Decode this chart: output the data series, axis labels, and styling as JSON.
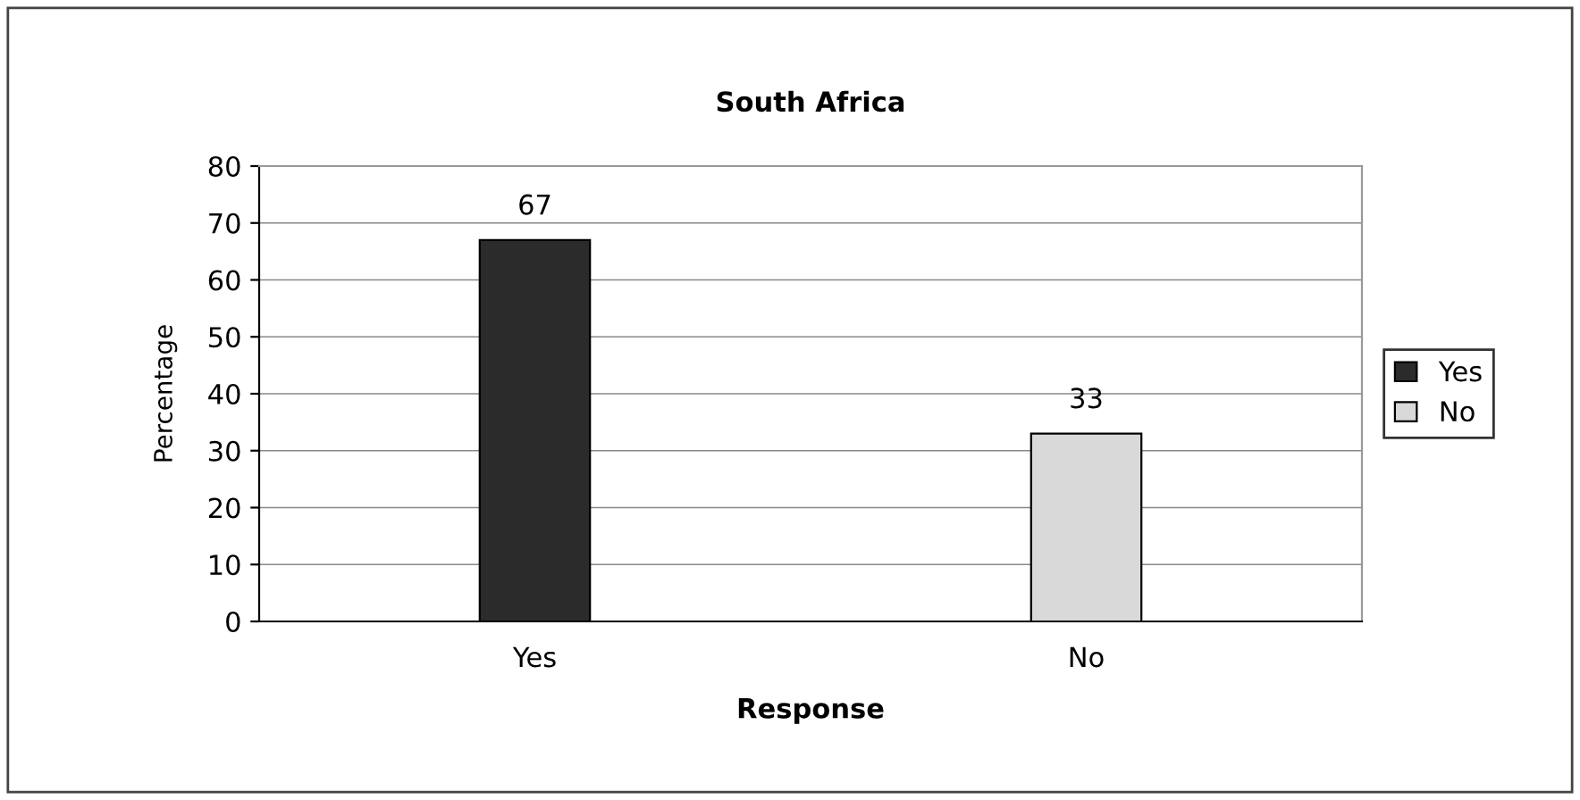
{
  "chart_data": {
    "type": "bar",
    "title": "South Africa",
    "xlabel": "Response",
    "ylabel": "Percentage",
    "categories": [
      "Yes",
      "No"
    ],
    "series": [
      {
        "name": "Yes",
        "color": "#2b2b2b",
        "values": [
          67,
          null
        ]
      },
      {
        "name": "No",
        "color": "#d9d9d9",
        "values": [
          null,
          33
        ]
      }
    ],
    "ylim": [
      0,
      80
    ],
    "yticks": [
      0,
      10,
      20,
      30,
      40,
      50,
      60,
      70,
      80
    ],
    "grid": "y",
    "legend": "right",
    "data_labels": true
  }
}
